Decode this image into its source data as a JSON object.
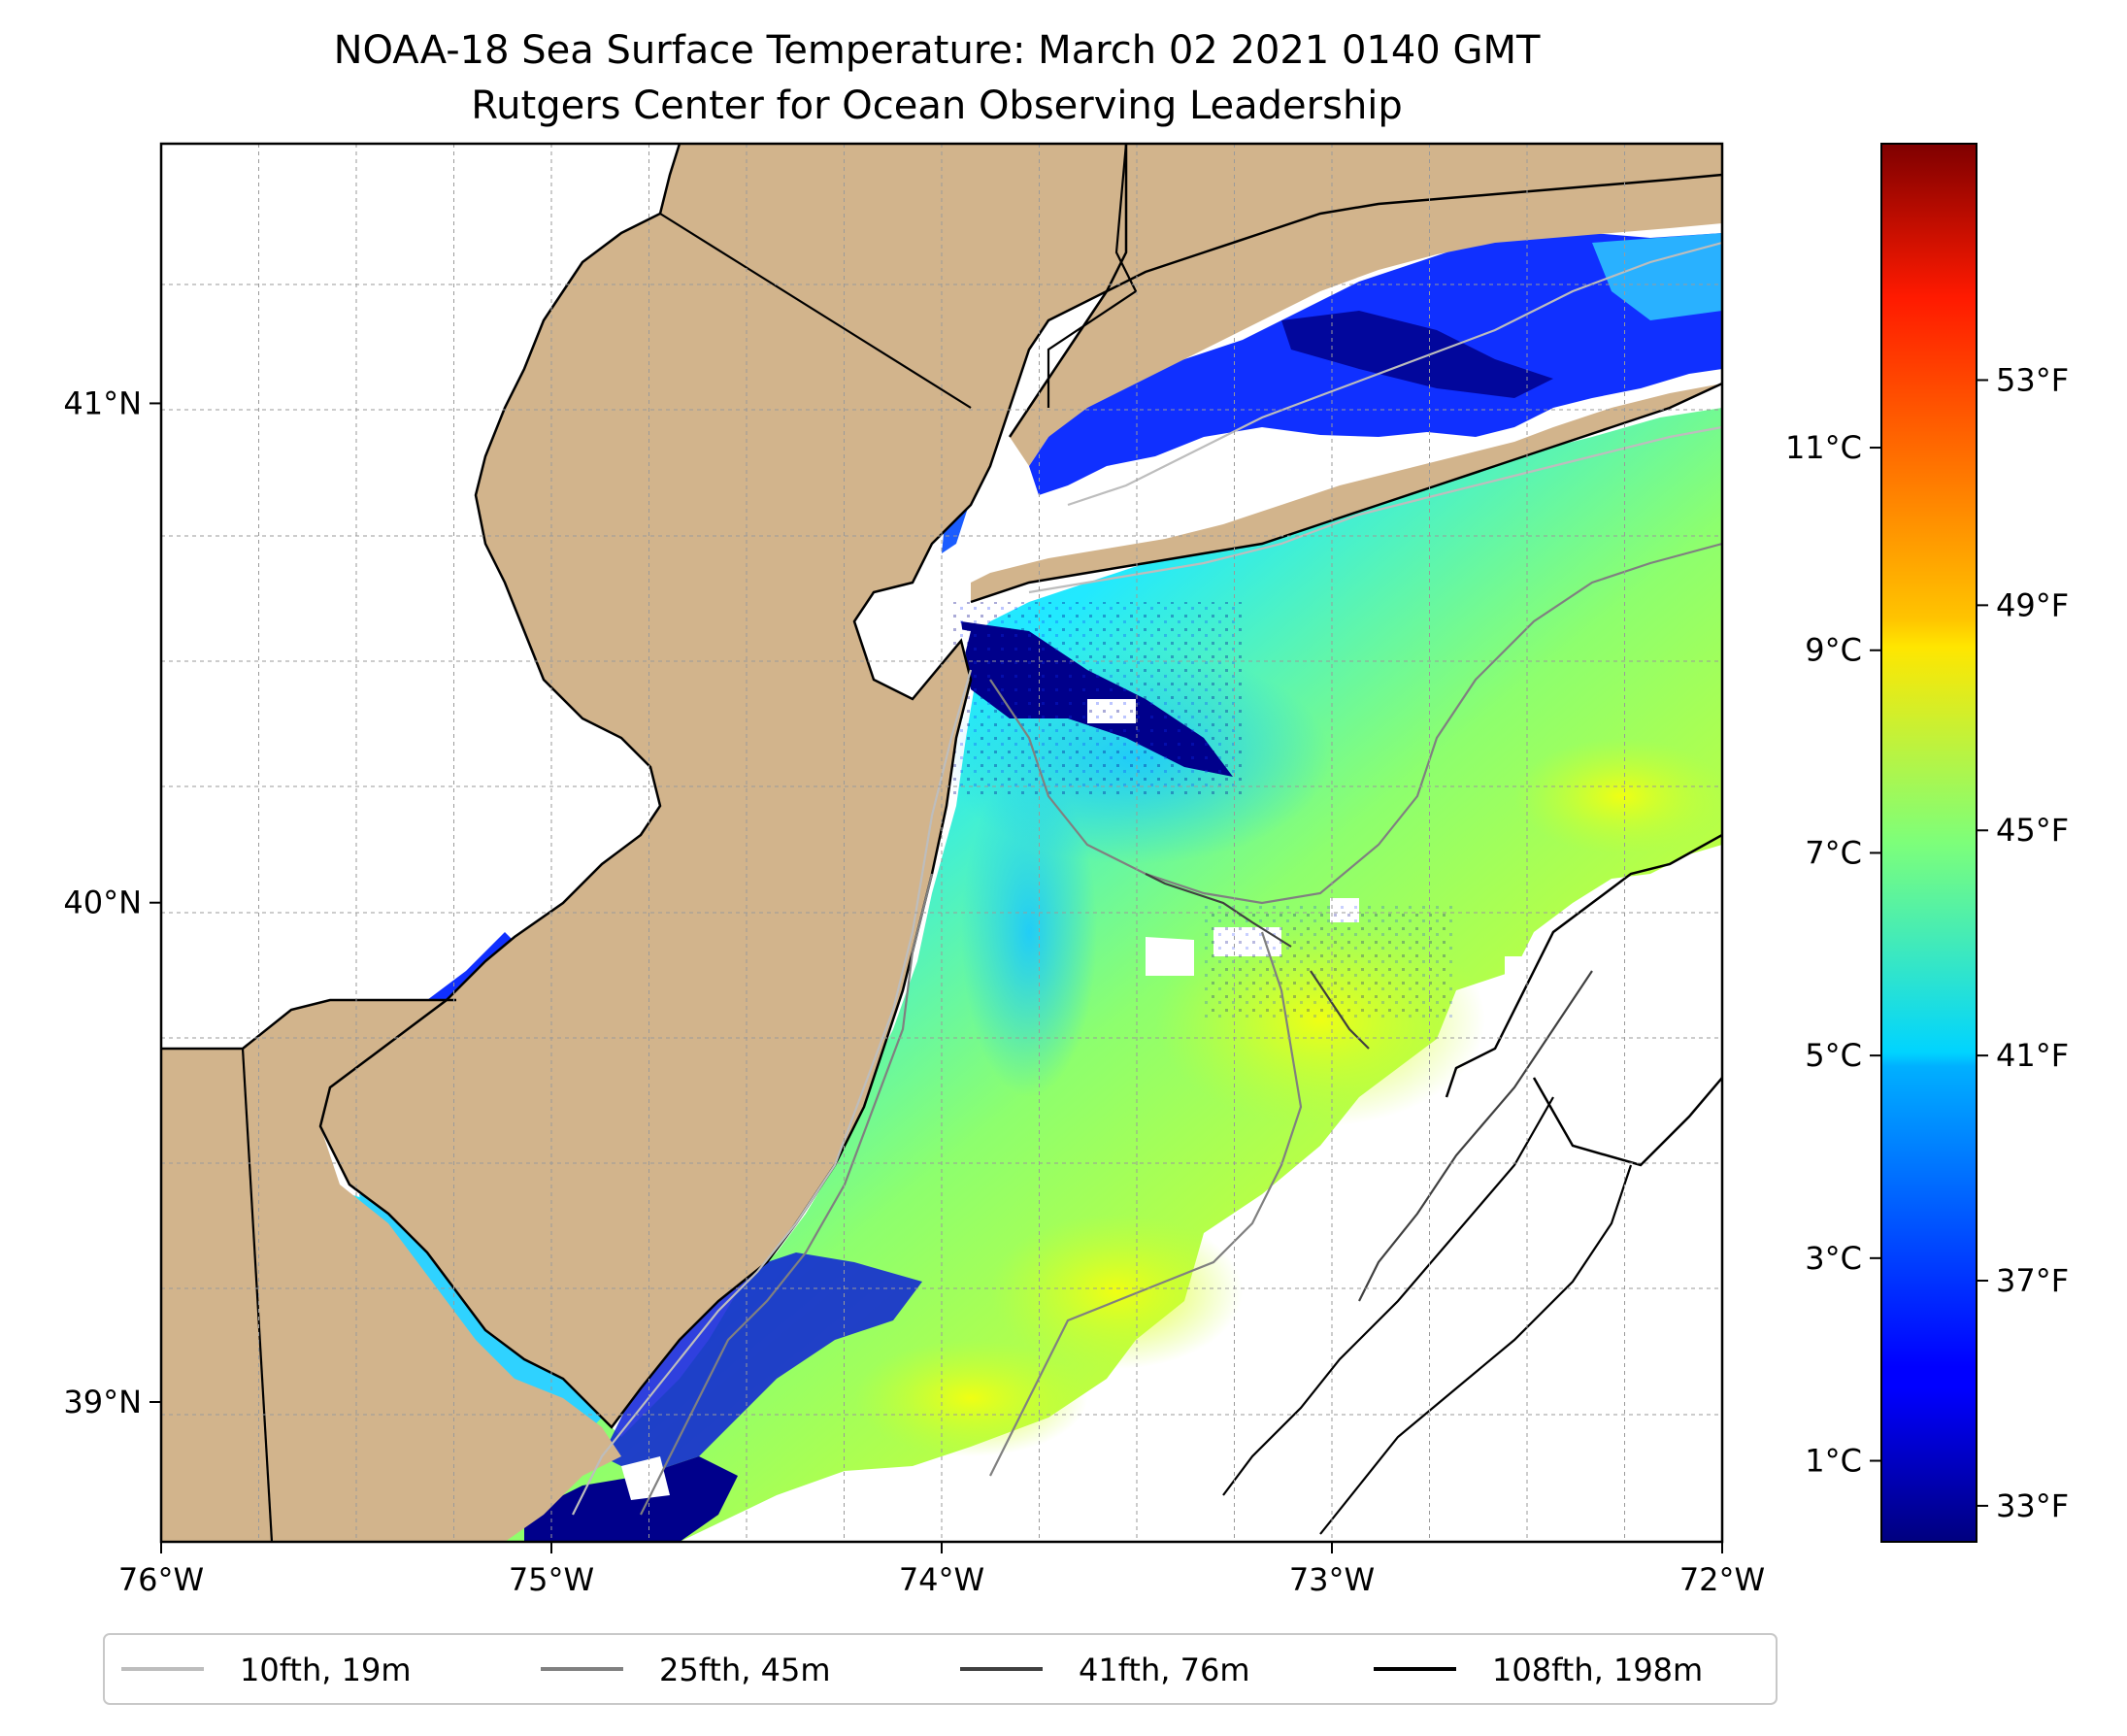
{
  "title": {
    "line1": "NOAA-18 Sea Surface Temperature: March 02 2021 0140 GMT",
    "line2": "Rutgers Center for Ocean Observing Leadership"
  },
  "map": {
    "lon_range": [
      -76,
      -72
    ],
    "lat_range": [
      38.72,
      41.52
    ],
    "x_ticks": [
      {
        "value": -76,
        "label": "76°W"
      },
      {
        "value": -75,
        "label": "75°W"
      },
      {
        "value": -74,
        "label": "74°W"
      },
      {
        "value": -73,
        "label": "73°W"
      },
      {
        "value": -72,
        "label": "72°W"
      }
    ],
    "y_ticks": [
      {
        "value": 39,
        "label": "39°N"
      },
      {
        "value": 40,
        "label": "40°N"
      },
      {
        "value": 41,
        "label": "41°N"
      }
    ],
    "gridlines": true,
    "colors": {
      "land": "#d2b48c",
      "no_data": "#ffffff",
      "coastline": "#000000",
      "state_border": "#000000"
    }
  },
  "colorbar": {
    "colormap": "jet",
    "celsius_range": [
      0.2,
      14.0
    ],
    "celsius_ticks": [
      {
        "value": 1,
        "label": "1°C"
      },
      {
        "value": 3,
        "label": "3°C"
      },
      {
        "value": 5,
        "label": "5°C"
      },
      {
        "value": 7,
        "label": "7°C"
      },
      {
        "value": 9,
        "label": "9°C"
      },
      {
        "value": 11,
        "label": "11°C"
      }
    ],
    "fahrenheit_ticks": [
      {
        "value": 33,
        "label": "33°F"
      },
      {
        "value": 37,
        "label": "37°F"
      },
      {
        "value": 41,
        "label": "41°F"
      },
      {
        "value": 45,
        "label": "45°F"
      },
      {
        "value": 49,
        "label": "49°F"
      },
      {
        "value": 53,
        "label": "53°F"
      }
    ]
  },
  "legend": {
    "placement": "bottom-center",
    "entries": [
      {
        "label": "10fth, 19m",
        "color": "#bdbdbd"
      },
      {
        "label": "25fth, 45m",
        "color": "#808080"
      },
      {
        "label": "41fth, 76m",
        "color": "#404040"
      },
      {
        "label": "108fth, 198m",
        "color": "#000000"
      }
    ]
  }
}
